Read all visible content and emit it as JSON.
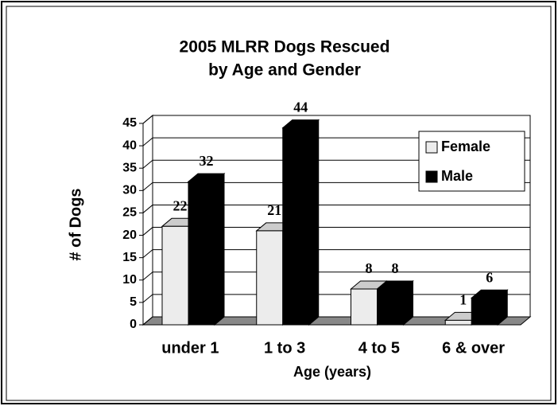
{
  "chart_data": {
    "type": "bar3d",
    "title": [
      "2005 MLRR Dogs Rescued",
      "by Age and Gender"
    ],
    "y_label": "# of Dogs",
    "x_label": "Age (years)",
    "categories": [
      "under 1",
      "1 to 3",
      "4 to 5",
      "6 & over"
    ],
    "series": [
      {
        "name": "Female",
        "color": "#ececec",
        "values": [
          22,
          21,
          8,
          1
        ]
      },
      {
        "name": "Male",
        "color": "#000000",
        "values": [
          32,
          44,
          8,
          6
        ]
      }
    ],
    "ylim": [
      0,
      45
    ],
    "yticks": [
      0,
      5,
      10,
      15,
      20,
      25,
      30,
      35,
      40,
      45
    ],
    "grid": true,
    "legend": "upper right"
  }
}
